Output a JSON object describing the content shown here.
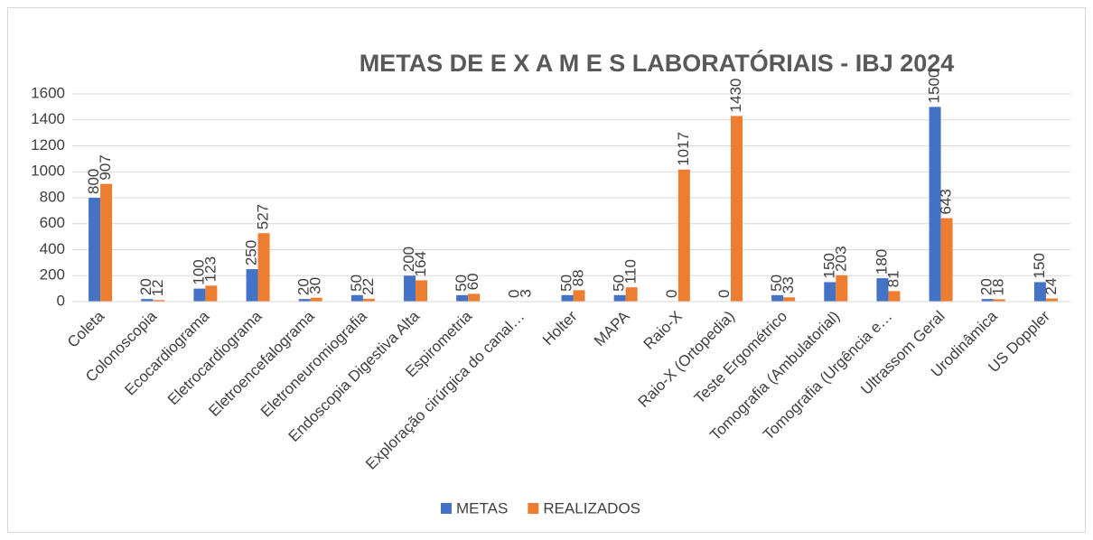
{
  "chart_data": {
    "type": "bar",
    "title": "METAS  DE  E X A M E S LABORATÓRIAIS - IBJ 2024",
    "categories": [
      "Coleta",
      "Colonoscopia",
      "Ecocardiograma",
      "Eletrocardiograma",
      "Eletroencefalograma",
      "Eletroneuromiografia",
      "Endoscopia Digestiva Alta",
      "Espirometria",
      "Exploração cirúrgica do canal…",
      "Holter",
      "MAPA",
      "Raio-X",
      "Raio-X (Ortopedia)",
      "Teste Ergométrico",
      "Tomografia (Ambulatorial)",
      "Tomografia (Urgência e…",
      "Ultrassom Geral",
      "Urodinâmica",
      "US Doppler"
    ],
    "series": [
      {
        "name": "METAS",
        "color": "#4472c4",
        "values": [
          800,
          20,
          100,
          250,
          20,
          50,
          200,
          50,
          0,
          50,
          50,
          0,
          0,
          50,
          150,
          180,
          1500,
          20,
          150
        ]
      },
      {
        "name": "REALIZADOS",
        "color": "#ed7d31",
        "values": [
          907,
          12,
          123,
          527,
          30,
          22,
          164,
          60,
          3,
          88,
          110,
          1017,
          1430,
          33,
          203,
          81,
          643,
          18,
          24
        ]
      }
    ],
    "ylim": [
      0,
      1600
    ],
    "yticks": [
      0,
      200,
      400,
      600,
      800,
      1000,
      1200,
      1400,
      1600
    ],
    "grid": true,
    "legend": "bottom"
  }
}
